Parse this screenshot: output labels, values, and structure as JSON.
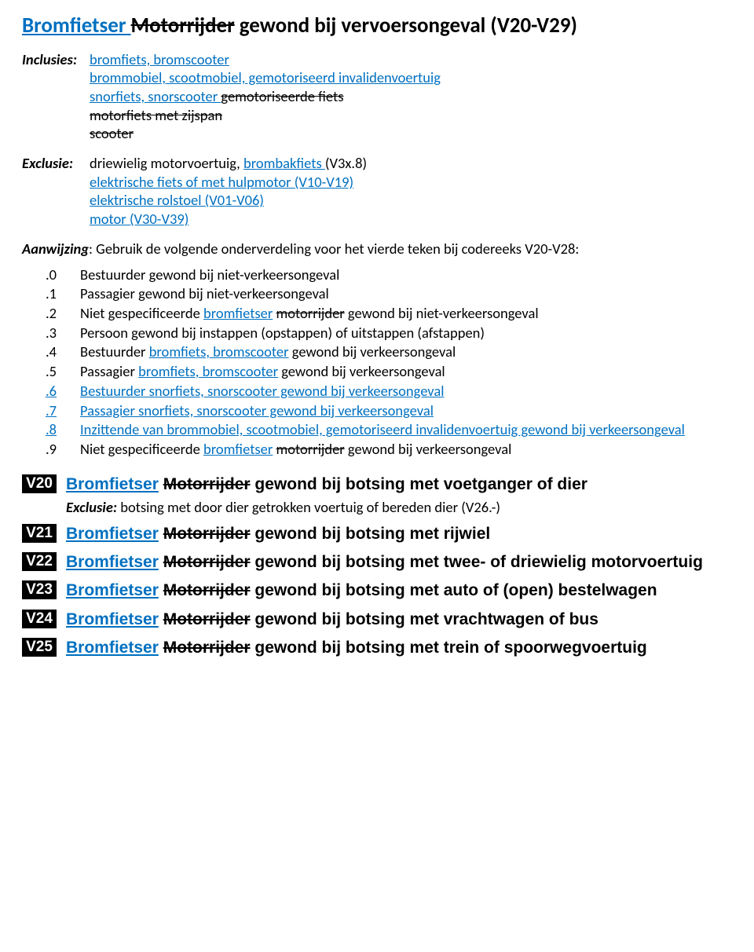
{
  "colors": {
    "insert": "#0070c0",
    "code_bg": "#000000",
    "code_fg": "#ffffff",
    "body_text": "#000000",
    "background": "#ffffff"
  },
  "title": {
    "segments": [
      {
        "text": "Bromfietser ",
        "style": "ins"
      },
      {
        "text": "Motorrijder",
        "style": "del"
      },
      {
        "text": " gewond bij vervoersongeval (V20-V29)",
        "style": "plain"
      }
    ]
  },
  "inclusies": {
    "label": "Inclusies:",
    "lines": [
      [
        {
          "text": "bromfiets, bromscooter",
          "style": "ins"
        }
      ],
      [
        {
          "text": "brommobiel, scootmobiel, gemotoriseerd invalidenvoertuig",
          "style": "ins"
        }
      ],
      [
        {
          "text": "snorfiets, snorscooter ",
          "style": "ins"
        },
        {
          "text": "gemotoriseerde fiets",
          "style": "del"
        }
      ],
      [
        {
          "text": "motorfiets met zijspan",
          "style": "del"
        }
      ],
      [
        {
          "text": "scooter",
          "style": "del"
        }
      ]
    ]
  },
  "exclusie_block": {
    "label": "Exclusie:",
    "lines": [
      [
        {
          "text": "driewielig motorvoertuig, ",
          "style": "plain"
        },
        {
          "text": "brombakfiets ",
          "style": "ins"
        },
        {
          "text": "(V3x.8)",
          "style": "plain"
        }
      ],
      [
        {
          "text": "elektrische fiets of met hulpmotor (V10-V19)",
          "style": "ins"
        }
      ],
      [
        {
          "text": "elektrische rolstoel (V01-V06)",
          "style": "ins"
        }
      ],
      [
        {
          "text": "motor (V30-V39)",
          "style": "ins"
        }
      ]
    ]
  },
  "aanwijzing": {
    "label": "Aanwijzing",
    "text": ": Gebruik de volgende onderverdeling voor het vierde teken bij codereeks V20-V28:"
  },
  "sub": [
    {
      "num": ".0",
      "segments": [
        {
          "text": "Bestuurder gewond bij niet-verkeersongeval",
          "style": "plain"
        }
      ]
    },
    {
      "num": ".1",
      "segments": [
        {
          "text": "Passagier gewond bij niet-verkeersongeval",
          "style": "plain"
        }
      ]
    },
    {
      "num": ".2",
      "segments": [
        {
          "text": "Niet gespecificeerde ",
          "style": "plain"
        },
        {
          "text": "bromfietser",
          "style": "ins"
        },
        {
          "text": " ",
          "style": "plain"
        },
        {
          "text": "motorrijder",
          "style": "del"
        },
        {
          "text": " gewond bij niet-verkeersongeval",
          "style": "plain"
        }
      ]
    },
    {
      "num": ".3",
      "segments": [
        {
          "text": "Persoon gewond bij instappen (opstappen) of uitstappen (afstappen)",
          "style": "plain"
        }
      ]
    },
    {
      "num": ".4",
      "segments": [
        {
          "text": "Bestuurder ",
          "style": "plain"
        },
        {
          "text": "bromfiets, bromscooter",
          "style": "ins"
        },
        {
          "text": " gewond bij verkeersongeval",
          "style": "plain"
        }
      ]
    },
    {
      "num": ".5",
      "segments": [
        {
          "text": "Passagier ",
          "style": "plain"
        },
        {
          "text": "bromfiets, bromscooter",
          "style": "ins"
        },
        {
          "text": " gewond bij verkeersongeval",
          "style": "plain"
        }
      ]
    },
    {
      "num": ".6",
      "num_style": "ins",
      "segments": [
        {
          "text": "Bestuurder snorfiets, snorscooter gewond bij verkeersongeval",
          "style": "ins"
        }
      ]
    },
    {
      "num": ".7",
      "num_style": "ins",
      "segments": [
        {
          "text": "Passagier snorfiets, snorscooter gewond bij verkeersongeval",
          "style": "ins"
        }
      ]
    },
    {
      "num": ".8",
      "num_style": "ins",
      "segments": [
        {
          "text": "Inzittende van brommobiel, scootmobiel, gemotoriseerd invalidenvoertuig gewond bij verkeersongeval",
          "style": "ins"
        }
      ]
    },
    {
      "num": ".9",
      "segments": [
        {
          "text": "Niet gespecificeerde ",
          "style": "plain"
        },
        {
          "text": "bromfietser",
          "style": "ins"
        },
        {
          "text": " ",
          "style": "plain"
        },
        {
          "text": "motorrijder",
          "style": "del"
        },
        {
          "text": " gewond bij verkeersongeval",
          "style": "plain"
        }
      ]
    }
  ],
  "codes": [
    {
      "code": "V20",
      "title": [
        {
          "text": "Bromfietser",
          "style": "ins"
        },
        {
          "text": " ",
          "style": "plain"
        },
        {
          "text": "Motorrijder",
          "style": "del"
        },
        {
          "text": " gewond bij botsing met voetganger of dier",
          "style": "plain"
        }
      ],
      "note": {
        "label": "Exclusie:",
        "text": " botsing met door dier getrokken voertuig of bereden dier (V26.-)"
      }
    },
    {
      "code": "V21",
      "title": [
        {
          "text": "Bromfietser",
          "style": "ins"
        },
        {
          "text": " ",
          "style": "plain"
        },
        {
          "text": "Motorrijder",
          "style": "del"
        },
        {
          "text": " gewond bij botsing met rijwiel",
          "style": "plain"
        }
      ]
    },
    {
      "code": "V22",
      "title": [
        {
          "text": "Bromfietser",
          "style": "ins"
        },
        {
          "text": " ",
          "style": "plain"
        },
        {
          "text": "Motorrijder",
          "style": "del"
        },
        {
          "text": " gewond bij botsing met twee- of driewielig motorvoertuig",
          "style": "plain"
        }
      ]
    },
    {
      "code": "V23",
      "title": [
        {
          "text": "Bromfietser",
          "style": "ins"
        },
        {
          "text": " ",
          "style": "plain"
        },
        {
          "text": "Motorrijder",
          "style": "del"
        },
        {
          "text": " gewond bij botsing met auto of (open) bestelwagen",
          "style": "plain"
        }
      ]
    },
    {
      "code": "V24",
      "title": [
        {
          "text": "Bromfietser",
          "style": "ins"
        },
        {
          "text": " ",
          "style": "plain"
        },
        {
          "text": "Motorrijder",
          "style": "del"
        },
        {
          "text": " gewond bij botsing met vrachtwagen of bus",
          "style": "plain"
        }
      ]
    },
    {
      "code": "V25",
      "title": [
        {
          "text": "Bromfietser",
          "style": "ins"
        },
        {
          "text": " ",
          "style": "plain"
        },
        {
          "text": "Motorrijder",
          "style": "del"
        },
        {
          "text": " gewond bij botsing met trein of spoorwegvoertuig",
          "style": "plain"
        }
      ]
    }
  ]
}
